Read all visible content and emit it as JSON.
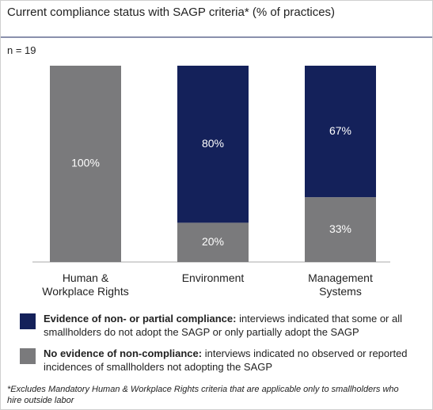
{
  "chart_data": {
    "type": "stacked_bar",
    "title": "Current compliance status with SAGP criteria* (% of practices)",
    "annotation": "n = 19",
    "categories": [
      "Human & Workplace Rights",
      "Environment",
      "Management Systems"
    ],
    "ylim": [
      0,
      100
    ],
    "series": [
      {
        "name": "No evidence of non-compliance:",
        "description": "interviews indicated no observed or reported incidences of smallholders not adopting the SAGP",
        "color": "#7a7a7c",
        "values": [
          100,
          20,
          33
        ],
        "value_labels": [
          "100%",
          "20%",
          "33%"
        ]
      },
      {
        "name": "Evidence of non- or partial compliance:",
        "description": "interviews indicated that some or all smallholders do not adopt the SAGP or only partially adopt the SAGP",
        "color": "#14215a",
        "values": [
          0,
          80,
          67
        ],
        "value_labels": [
          null,
          "80%",
          "67%"
        ]
      }
    ],
    "legend_order": [
      1,
      0
    ],
    "footnote": "*Excludes Mandatory Human & Workplace Rights criteria that are applicable only to smallholders who hire outside labor"
  }
}
